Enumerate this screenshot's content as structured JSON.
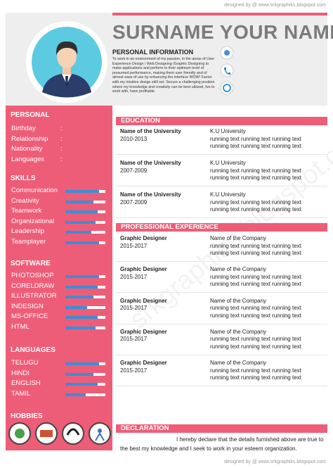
{
  "header": {
    "credit": "designed by @ www.srkgraphiks.blogspot.com",
    "name": "SURNAME YOUR NAME"
  },
  "personal_information": {
    "title": "PERSONAL INFORMATION",
    "text": "To work in an environment of my passion, in the areas of User Experience Design / Web Designing /Graphic Designing to make applications and perform to their optimum level of presumed performance, making them user friendly and of almost ease of use by enhancing the interface WOW! Factor with my intuitive design skill set. Secure a challenging position where my knowledge and creativity can be best utilized, fun to work with, have profitable."
  },
  "sidebar": {
    "personal": {
      "title": "PERSONAL",
      "separator": ":",
      "fields": [
        "Birthday",
        "Relationship",
        "Nationality",
        "Languages"
      ]
    },
    "skills": {
      "title": "SKILLS",
      "items": [
        {
          "name": "Communication",
          "level": 85
        },
        {
          "name": "Creativity",
          "level": 70
        },
        {
          "name": "Teamwork",
          "level": 80
        },
        {
          "name": "Organizational",
          "level": 75
        },
        {
          "name": "Leadership",
          "level": 65
        },
        {
          "name": "Teamplayer",
          "level": 85
        }
      ]
    },
    "software": {
      "title": "SOFTWARE",
      "items": [
        {
          "name": "PHOTOSHOP",
          "level": 85
        },
        {
          "name": "CORELDRAW",
          "level": 80
        },
        {
          "name": "ILLUSTRATOR",
          "level": 70
        },
        {
          "name": "INDESIGN",
          "level": 55
        },
        {
          "name": "MS-OFFICE",
          "level": 80
        },
        {
          "name": "HTML",
          "level": 75
        }
      ]
    },
    "languages": {
      "title": "LANGUAGES",
      "items": [
        {
          "name": "TELUGU",
          "level": 85
        },
        {
          "name": "HINDI",
          "level": 70
        },
        {
          "name": "ENGLISH",
          "level": 80
        },
        {
          "name": "TAMIL",
          "level": 50
        }
      ]
    },
    "hobbies": {
      "title": "HOBBIES"
    }
  },
  "education": {
    "title": "EDUCATION",
    "entries": [
      {
        "school": "Name of the University",
        "years": "2010-2013",
        "place": "K.U University",
        "lines": [
          "running text  running text running text",
          "running text  running text running text"
        ]
      },
      {
        "school": "Name of the University",
        "years": "2007-2009",
        "place": "K.U University",
        "lines": [
          "running text  running text running text",
          "running text  running text running text"
        ]
      },
      {
        "school": "Name of the University",
        "years": "2007-2009",
        "place": "K.U University",
        "lines": [
          "running text  running text running text",
          "running text  running text running text"
        ]
      }
    ]
  },
  "experience": {
    "title": "PROFESSIONAL EXPERIENCE",
    "entries": [
      {
        "role": "Graphic Designer",
        "years": "2015-2017",
        "company": "Name of the Company",
        "lines": [
          "running text  running text running text",
          "running text  running text running text"
        ]
      },
      {
        "role": "Graphic Designer",
        "years": "2015-2017",
        "company": "Name of the Company",
        "lines": [
          "running text  running text running text",
          "running text  running text running text"
        ]
      },
      {
        "role": "Graphic Designer",
        "years": "2015-2017",
        "company": "Name of the Company",
        "lines": [
          "running text  running text running text",
          "running text  running text running text"
        ]
      },
      {
        "role": "Graphic Designer",
        "years": "2015-2017",
        "company": "Name of the Company",
        "lines": [
          "running text  running text running text",
          "running text  running text running text"
        ]
      },
      {
        "role": "Graphic Designer",
        "years": "2015-2017",
        "company": "Name of the Company",
        "lines": [
          "running text  running text running text",
          "running text  running text running text"
        ]
      }
    ]
  },
  "declaration": {
    "title": "DECLARATION",
    "text": "I hereby declare that the details furnished above are true to the best my knowledge and I seek to work in your esteem organization."
  },
  "watermark": "srkgraphiks.blogspot.com",
  "footer": {
    "credit": "designed by @ www.srkgraphiks.blogspot.com"
  }
}
